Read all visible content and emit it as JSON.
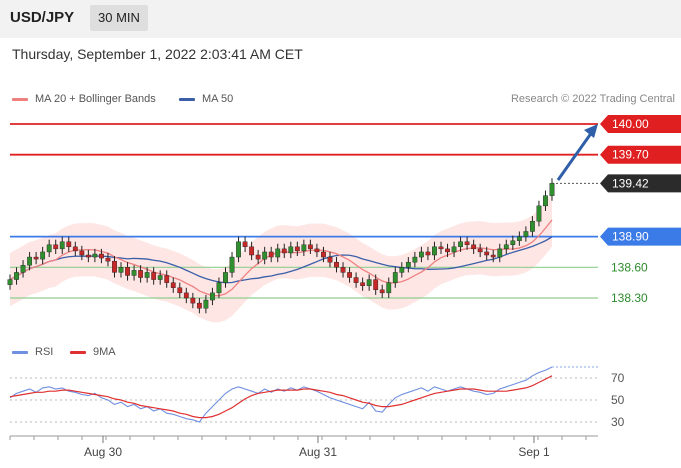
{
  "header": {
    "pair": "USD/JPY",
    "timeframe": "30 MIN"
  },
  "datetime": "Thursday, September 1, 2022 2:03:41 AM CET",
  "legend": {
    "ma20": "MA 20 + Bollinger Bands",
    "ma50": "MA 50",
    "credit": "Research © 2022 Trading Central",
    "rsi": "RSI",
    "rsi_ma": "9MA"
  },
  "colors": {
    "ma20": "#f08080",
    "ma50": "#3a5fa8",
    "red_level": "#e02020",
    "blue_level": "#3b7be8",
    "green_level": "#8fce8f",
    "rsi": "#6f8fe0",
    "rsi_ma": "#e03030"
  },
  "chart_data": [
    {
      "type": "candlestick",
      "title": "USD/JPY 30 MIN",
      "x_ticks": [
        "Aug 30",
        "Aug 31",
        "Sep 1"
      ],
      "levels": [
        {
          "value": 140.0,
          "label": "140.00",
          "kind": "resistance",
          "color": "#e02020"
        },
        {
          "value": 139.7,
          "label": "139.70",
          "kind": "resistance",
          "color": "#e02020"
        },
        {
          "value": 139.42,
          "label": "139.42",
          "kind": "last-price",
          "color": "#333333"
        },
        {
          "value": 138.9,
          "label": "138.90",
          "kind": "pivot",
          "color": "#3b7be8"
        },
        {
          "value": 138.6,
          "label": "138.60",
          "kind": "support",
          "color": "#4caf50"
        },
        {
          "value": 138.3,
          "label": "138.30",
          "kind": "support",
          "color": "#4caf50"
        }
      ],
      "close": [
        138.48,
        138.55,
        138.62,
        138.7,
        138.68,
        138.75,
        138.82,
        138.78,
        138.85,
        138.8,
        138.76,
        138.72,
        138.7,
        138.73,
        138.69,
        138.66,
        138.55,
        138.6,
        138.52,
        138.57,
        138.5,
        138.55,
        138.48,
        138.52,
        138.45,
        138.4,
        138.35,
        138.3,
        138.25,
        138.2,
        138.28,
        138.35,
        138.45,
        138.55,
        138.7,
        138.85,
        138.8,
        138.72,
        138.68,
        138.75,
        138.7,
        138.78,
        138.74,
        138.8,
        138.76,
        138.82,
        138.78,
        138.75,
        138.7,
        138.65,
        138.6,
        138.55,
        138.5,
        138.45,
        138.42,
        138.48,
        138.38,
        138.35,
        138.45,
        138.55,
        138.6,
        138.65,
        138.7,
        138.75,
        138.72,
        138.8,
        138.78,
        138.75,
        138.8,
        138.85,
        138.82,
        138.78,
        138.75,
        138.72,
        138.7,
        138.78,
        138.82,
        138.86,
        138.9,
        138.95,
        139.05,
        139.2,
        139.3,
        139.42
      ],
      "rsi": [
        52,
        56,
        58,
        60,
        57,
        61,
        62,
        60,
        61,
        58,
        57,
        55,
        54,
        56,
        52,
        50,
        46,
        48,
        44,
        46,
        42,
        44,
        40,
        42,
        38,
        37,
        35,
        33,
        32,
        30,
        38,
        44,
        50,
        56,
        60,
        62,
        60,
        58,
        56,
        60,
        57,
        60,
        58,
        61,
        59,
        62,
        60,
        58,
        55,
        52,
        50,
        48,
        46,
        44,
        42,
        48,
        40,
        39,
        46,
        52,
        55,
        57,
        59,
        61,
        58,
        62,
        60,
        58,
        60,
        62,
        60,
        58,
        57,
        55,
        56,
        60,
        62,
        64,
        66,
        68,
        72,
        75,
        77,
        80
      ],
      "rsi_ma": [
        53,
        54,
        55,
        56,
        57,
        57,
        58,
        58,
        59,
        59,
        58,
        57,
        56,
        55,
        54,
        53,
        51,
        50,
        48,
        47,
        45,
        44,
        43,
        42,
        41,
        40,
        38,
        37,
        35,
        34,
        34,
        35,
        37,
        40,
        43,
        47,
        51,
        54,
        56,
        57,
        58,
        59,
        59,
        59,
        59,
        60,
        60,
        59,
        58,
        57,
        55,
        54,
        52,
        50,
        48,
        47,
        45,
        44,
        44,
        45,
        46,
        48,
        50,
        52,
        54,
        56,
        57,
        58,
        59,
        60,
        60,
        60,
        59,
        58,
        58,
        58,
        58,
        59,
        60,
        61,
        63,
        66,
        69,
        72
      ],
      "rsi_ticks": [
        70,
        50,
        30
      ]
    }
  ]
}
